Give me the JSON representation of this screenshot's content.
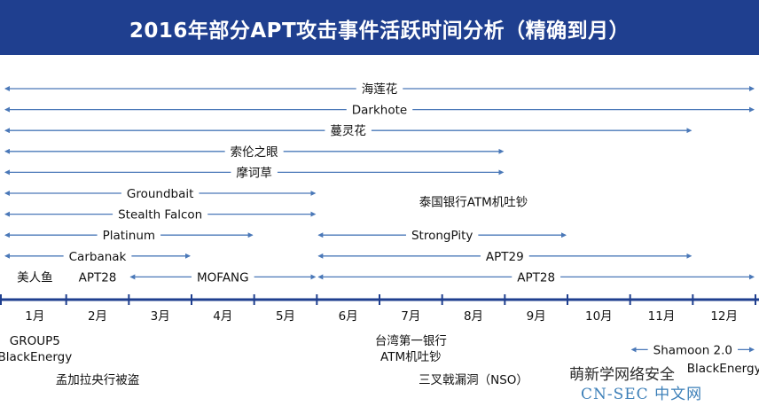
{
  "title": "2016年部分APT攻击事件活跃时间分析（精确到月）",
  "colors": {
    "banner": "#1f3f8f",
    "arrow": "#4a78b8",
    "axis": "#1f3f8f",
    "text": "#111111"
  },
  "months": [
    "1月",
    "2月",
    "3月",
    "4月",
    "5月",
    "6月",
    "7月",
    "8月",
    "9月",
    "10月",
    "11月",
    "12月"
  ],
  "events": [
    {
      "name": "海莲花",
      "start": 0.0,
      "end": 12.0,
      "row": 1
    },
    {
      "name": "Darkhote",
      "start": 0.0,
      "end": 12.0,
      "row": 2
    },
    {
      "name": "蔓灵花",
      "start": 0.0,
      "end": 11.0,
      "row": 3
    },
    {
      "name": "索伦之眼",
      "start": 0.0,
      "end": 8.0,
      "row": 4
    },
    {
      "name": "摩诃草",
      "start": 0.0,
      "end": 8.0,
      "row": 5
    },
    {
      "name": "Groundbait",
      "start": 0.0,
      "end": 5.0,
      "row": 6
    },
    {
      "name": "泰国银行ATM机吐钞",
      "start": 7.0,
      "end": 8.0,
      "row": 6.4
    },
    {
      "name": "Stealth Falcon",
      "start": 0.0,
      "end": 5.0,
      "row": 7
    },
    {
      "name": "Platinum",
      "start": 0.0,
      "end": 4.0,
      "row": 8
    },
    {
      "name": "StrongPity",
      "start": 5.0,
      "end": 9.0,
      "row": 8
    },
    {
      "name": "Carbanak",
      "start": 0.0,
      "end": 3.0,
      "row": 9
    },
    {
      "name": "APT29",
      "start": 5.0,
      "end": 11.0,
      "row": 9
    },
    {
      "name": "美人鱼",
      "start": 0.0,
      "end": 1.0,
      "row": 10
    },
    {
      "name": "APT28",
      "start": 1.0,
      "end": 2.0,
      "row": 10
    },
    {
      "name": "MOFANG",
      "start": 2.0,
      "end": 5.0,
      "row": 10
    },
    {
      "name": "APT28",
      "start": 5.0,
      "end": 12.0,
      "row": 10
    },
    {
      "name": "GROUP5",
      "start": 0.0,
      "end": 1.0,
      "row": 12
    },
    {
      "name": "BlackEnergy",
      "start": 0.0,
      "end": 1.0,
      "row": 12.7
    },
    {
      "name": "孟加拉央行被盗",
      "start": 1.0,
      "end": 2.0,
      "row": 13.7
    },
    {
      "name": "台湾第一银行",
      "start": 6.0,
      "end": 7.0,
      "row": 12
    },
    {
      "name": "ATM机吐钞",
      "start": 6.0,
      "end": 7.0,
      "row": 12.7
    },
    {
      "name": "三叉戟漏洞（NSO）",
      "start": 7.0,
      "end": 8.0,
      "row": 13.7
    },
    {
      "name": "Shamoon 2.0",
      "start": 10.0,
      "end": 12.0,
      "row": 12.4
    },
    {
      "name": "BlackEnergy",
      "start": 11.0,
      "end": 12.0,
      "row": 13.2
    }
  ],
  "watermark": {
    "line1": "萌新学网络安全",
    "line2": "CN-SEC 中文网"
  }
}
